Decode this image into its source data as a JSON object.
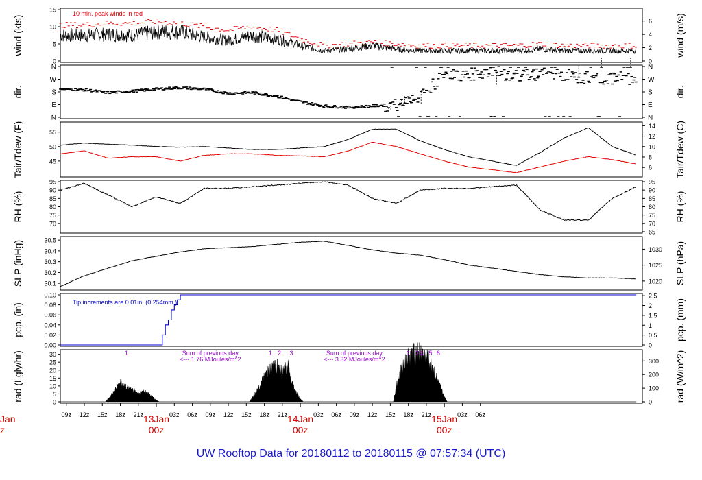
{
  "title": "UW Rooftop Data for 20180112  to  20180115 @ 07:57:34  (UTC)",
  "colors": {
    "frame": "#000000",
    "series": "#000000",
    "accent_red": "#e00000",
    "precip_blue": "#0000cc",
    "radiation_purple": "#9900cc",
    "title_blue": "#1a1acc"
  },
  "time_axis": {
    "hour_ticks": [
      "09z",
      "12z",
      "15z",
      "18z",
      "21z",
      "03z",
      "06z",
      "09z",
      "12z",
      "15z",
      "18z",
      "21z",
      "03z",
      "06z",
      "09z",
      "12z",
      "15z",
      "18z",
      "21z",
      "03z",
      "06z"
    ],
    "day_labels": [
      {
        "date": "13Jan",
        "hour": "00z"
      },
      {
        "date": "14Jan",
        "hour": "00z"
      },
      {
        "date": "15Jan",
        "hour": "00z"
      }
    ],
    "edge_date_fragment": "Jan",
    "edge_hour_fragment": "z"
  },
  "chart_data": [
    {
      "id": "wind",
      "type": "line",
      "ylabel": "wind (kts)",
      "ylabel_right": "wind (m/s)",
      "ylim": [
        0,
        15
      ],
      "yticks": [
        "0",
        "5",
        "10",
        "15"
      ],
      "yticks_right": [
        "0",
        "2",
        "4",
        "6"
      ],
      "annotation": "10 min. peak winds in red",
      "series": [
        {
          "name": "wind",
          "x": [
            8,
            12,
            16,
            20,
            24,
            28,
            32,
            36,
            40,
            44,
            48,
            52,
            56,
            60,
            64,
            68,
            72,
            76,
            80,
            84,
            88,
            92,
            96,
            100,
            104
          ],
          "values": [
            7.5,
            7.5,
            7.8,
            7.5,
            8.5,
            8.5,
            7.0,
            6.0,
            7.5,
            6.5,
            4.5,
            3.0,
            3.5,
            4.5,
            3.5,
            3.0,
            3.0,
            3.0,
            3.0,
            3.0,
            3.5,
            3.0,
            3.0,
            3.0,
            3.0
          ]
        },
        {
          "name": "10 min. peak winds",
          "x": [
            8,
            12,
            16,
            20,
            24,
            28,
            32,
            36,
            40,
            44,
            48,
            52,
            56,
            60,
            64,
            68,
            72,
            76,
            80,
            84,
            88,
            92,
            96,
            100,
            104
          ],
          "values": [
            10.5,
            10.5,
            11,
            11,
            11.5,
            11,
            10,
            9,
            10,
            9,
            6.5,
            4.5,
            5,
            5.5,
            5,
            4.5,
            4.5,
            4.5,
            4.5,
            4.5,
            5,
            4.5,
            4.5,
            4.5,
            4.5
          ]
        }
      ]
    },
    {
      "id": "dir",
      "type": "scatter",
      "ylabel": "dir.",
      "yticks": [
        "N",
        "E",
        "S",
        "W",
        "N"
      ],
      "yticks_right": [
        "N",
        "E",
        "S",
        "W",
        "N"
      ],
      "series": [
        {
          "name": "wind direction",
          "x": [
            8,
            12,
            16,
            20,
            24,
            28,
            32,
            36,
            40,
            44,
            48,
            52,
            56,
            60,
            64,
            68,
            72,
            76,
            80,
            84,
            88,
            92,
            96,
            100,
            104
          ],
          "values": [
            200,
            195,
            175,
            185,
            200,
            210,
            200,
            170,
            175,
            150,
            110,
            80,
            70,
            80,
            90,
            150,
            300,
            300,
            330,
            290,
            310,
            300,
            280,
            280,
            270
          ]
        }
      ]
    },
    {
      "id": "temp",
      "type": "line",
      "ylabel": "Tair/Tdew (F)",
      "ylabel_right": "Tair/Tdew (C)",
      "ylim": [
        40,
        58
      ],
      "yticks": [
        "45",
        "50",
        "55"
      ],
      "yticks_right": [
        "6",
        "8",
        "10",
        "12",
        "14"
      ],
      "series": [
        {
          "name": "Tair",
          "x": [
            8,
            12,
            16,
            20,
            24,
            28,
            32,
            36,
            40,
            44,
            48,
            52,
            56,
            60,
            64,
            68,
            72,
            76,
            80,
            84,
            88,
            92,
            96,
            100,
            104
          ],
          "values": [
            50.5,
            51.2,
            50.8,
            50.5,
            50.0,
            49.8,
            50.0,
            49.5,
            49.0,
            49.0,
            49.5,
            50.0,
            52.5,
            56.0,
            56.0,
            52.0,
            49.0,
            46.5,
            45.0,
            43.5,
            48.0,
            53.0,
            56.5,
            50.0,
            47.0
          ]
        },
        {
          "name": "Tdew",
          "x": [
            8,
            12,
            16,
            20,
            24,
            28,
            32,
            36,
            40,
            44,
            48,
            52,
            56,
            60,
            64,
            68,
            72,
            76,
            80,
            84,
            88,
            92,
            96,
            100,
            104
          ],
          "values": [
            47.5,
            48.5,
            46.0,
            46.5,
            46.5,
            45.0,
            47.0,
            47.5,
            47.5,
            47.0,
            46.8,
            46.5,
            48.5,
            51.5,
            50.0,
            47.5,
            45.0,
            43.0,
            42.0,
            41.0,
            43.0,
            45.0,
            46.5,
            45.5,
            44.0
          ]
        }
      ]
    },
    {
      "id": "rh",
      "type": "line",
      "ylabel": "RH (%)",
      "ylabel_right": "RH (%)",
      "ylim": [
        65,
        95
      ],
      "yticks": [
        "70",
        "75",
        "80",
        "85",
        "90",
        "95"
      ],
      "yticks_right": [
        "65",
        "70",
        "75",
        "80",
        "85",
        "90",
        "95"
      ],
      "series": [
        {
          "name": "RH",
          "x": [
            8,
            12,
            16,
            20,
            24,
            28,
            32,
            36,
            40,
            44,
            48,
            52,
            56,
            60,
            64,
            68,
            72,
            76,
            80,
            84,
            88,
            92,
            96,
            100,
            104
          ],
          "values": [
            90,
            94,
            87,
            80,
            86,
            82,
            91,
            91,
            92,
            93,
            94,
            95,
            93,
            85,
            82,
            90,
            91,
            91,
            92,
            93,
            78,
            72,
            72,
            85,
            92
          ]
        }
      ]
    },
    {
      "id": "slp",
      "type": "line",
      "ylabel": "SLP (inHg)",
      "ylabel_right": "SLP (hPa)",
      "ylim": [
        30.05,
        30.52
      ],
      "yticks": [
        "30.1",
        "30.2",
        "30.3",
        "30.4",
        "30.5"
      ],
      "yticks_right": [
        "1020",
        "1025",
        "1030"
      ],
      "series": [
        {
          "name": "SLP",
          "x": [
            8,
            12,
            16,
            20,
            24,
            28,
            32,
            36,
            40,
            44,
            48,
            52,
            56,
            60,
            64,
            68,
            72,
            76,
            80,
            84,
            88,
            92,
            96,
            100,
            104
          ],
          "values": [
            30.07,
            30.17,
            30.24,
            30.31,
            30.35,
            30.39,
            30.42,
            30.43,
            30.44,
            30.46,
            30.48,
            30.49,
            30.45,
            30.41,
            30.38,
            30.36,
            30.32,
            30.27,
            30.24,
            30.21,
            30.18,
            30.16,
            30.15,
            30.15,
            30.14
          ]
        }
      ]
    },
    {
      "id": "pcp",
      "type": "line",
      "ylabel": "pcp. (in)",
      "ylabel_right": "pcp. (mm)",
      "ylim": [
        0,
        0.1
      ],
      "yticks": [
        "0.00",
        "0.02",
        "0.04",
        "0.06",
        "0.08",
        "0.10"
      ],
      "yticks_right": [
        "0",
        "0.5",
        "1",
        "1.5",
        "2",
        "2.5"
      ],
      "annotation": "Tip increments are 0.01in. (0.254mm.)",
      "series": [
        {
          "name": "accumulated precipitation",
          "x": [
            8,
            24.5,
            25,
            25.5,
            26,
            26.5,
            27,
            27.5,
            28,
            104
          ],
          "values": [
            0,
            0,
            0.02,
            0.04,
            0.05,
            0.07,
            0.08,
            0.09,
            0.1,
            0.1
          ]
        }
      ]
    },
    {
      "id": "rad",
      "type": "area",
      "ylabel": "rad (Lgly/hr)",
      "ylabel_right": "rad (W/m^2)",
      "ylim": [
        0,
        32
      ],
      "yticks": [
        "0",
        "5",
        "10",
        "15",
        "20",
        "25",
        "30"
      ],
      "yticks_right": [
        "0",
        "100",
        "200",
        "300"
      ],
      "annotations": [
        {
          "label": "1",
          "x": 19
        },
        {
          "label": "Sum of previous day",
          "x": 33
        },
        {
          "label": "<--- 1.76 MJoules/m^2",
          "x": 33
        },
        {
          "label": "1",
          "x": 43
        },
        {
          "label": "2",
          "x": 44.5
        },
        {
          "label": "3",
          "x": 46.5
        },
        {
          "label": "Sum of previous day",
          "x": 57
        },
        {
          "label": "<--- 3.32 MJoules/m^2",
          "x": 57
        },
        {
          "label": "1",
          "x": 66
        },
        {
          "label": "2",
          "x": 67.5
        },
        {
          "label": "4",
          "x": 68.2
        },
        {
          "label": "5",
          "x": 69.7
        },
        {
          "label": "6",
          "x": 71
        }
      ],
      "series": [
        {
          "name": "solar radiation",
          "x": [
            15.5,
            16,
            17,
            18,
            19,
            20,
            21,
            22,
            23,
            24,
            24.5,
            39.5,
            40,
            41,
            42,
            43,
            44,
            45,
            46,
            47,
            48,
            48.5,
            63.5,
            64,
            65,
            66,
            67,
            68,
            69,
            70,
            71,
            72,
            72.5
          ],
          "values": [
            0,
            2,
            7,
            12,
            9,
            8,
            5,
            7,
            4,
            1,
            0,
            0,
            3,
            8,
            15,
            20,
            23,
            18,
            22,
            7,
            2,
            0,
            0,
            10,
            22,
            28,
            30,
            31,
            28,
            22,
            12,
            3,
            0
          ]
        }
      ]
    }
  ]
}
